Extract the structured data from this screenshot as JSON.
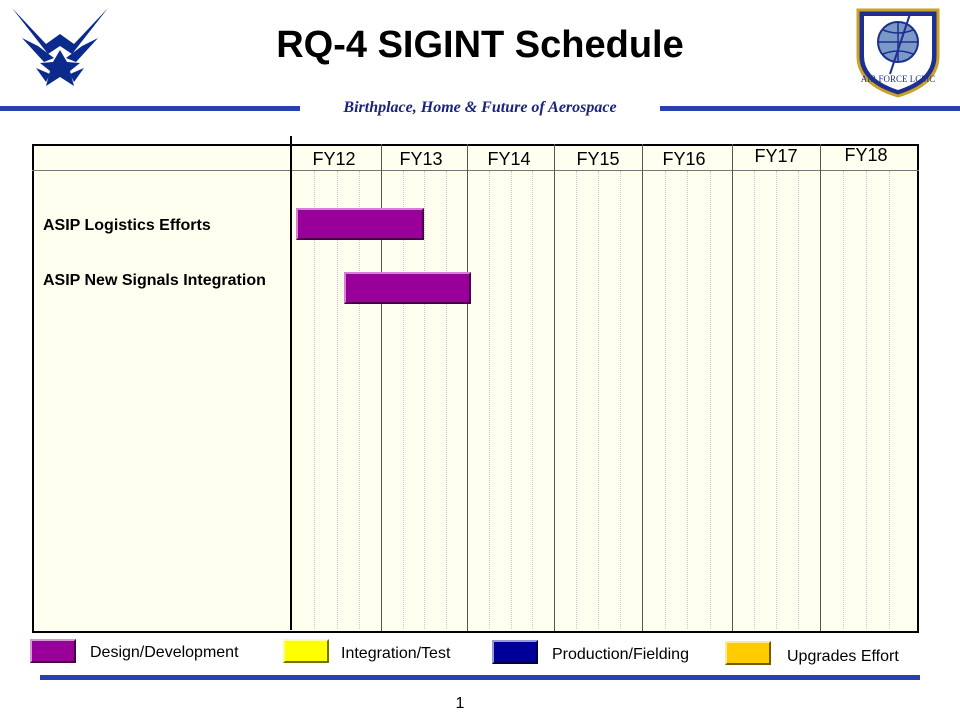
{
  "header": {
    "title": "RQ-4 SIGINT Schedule",
    "tagline": "Birthplace, Home & Future of Aerospace",
    "right_logo_text": "AIR FORCE LCMC"
  },
  "chart_data": {
    "type": "gantt",
    "fiscal_years": [
      "FY12",
      "FY13",
      "FY14",
      "FY15",
      "FY16",
      "FY17",
      "FY18"
    ],
    "tasks": [
      {
        "label": "ASIP Logistics Efforts",
        "phase": "Design/Development",
        "start": "FY12",
        "end": "FY13"
      },
      {
        "label": "ASIP New Signals Integration",
        "phase": "Design/Development",
        "start": "FY12 Q3",
        "end": "FY13 Q4"
      }
    ]
  },
  "legend": [
    {
      "label": "Design/Development",
      "color": "#990099"
    },
    {
      "label": "Integration/Test",
      "color": "#ffff00"
    },
    {
      "label": "Production/Fielding",
      "color": "#000099"
    },
    {
      "label": "Upgrades Effort",
      "color": "#ffcc00"
    }
  ],
  "colors": {
    "rule": "#2b3fb0",
    "chart_bg": "#fffff0"
  },
  "footer": {
    "page_number": "1"
  }
}
